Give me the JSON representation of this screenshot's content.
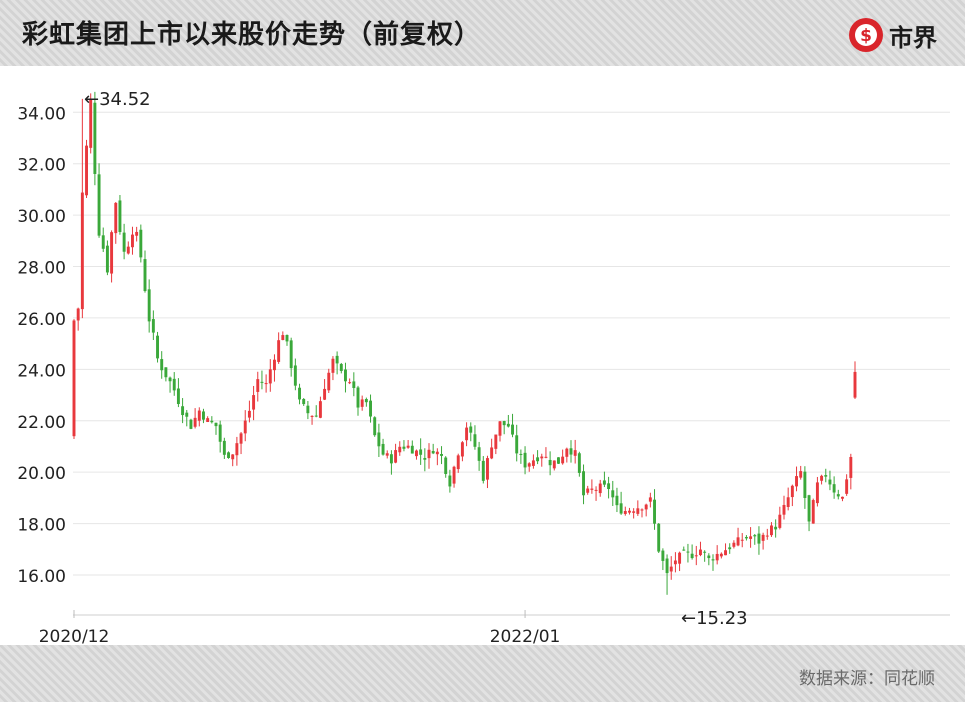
{
  "header": {
    "title": "彩虹集团上市以来股价走势（前复权）",
    "logo_text": "市界",
    "logo_symbol": "$"
  },
  "footer": {
    "source": "数据来源：同花顺"
  },
  "colors": {
    "up": "#e8383d",
    "down": "#3aa83a",
    "grid": "#e6e6e6",
    "axis_text": "#222222",
    "logo_red": "#d9252b"
  },
  "chart_data": {
    "type": "candlestick",
    "title": "彩虹集团上市以来股价走势（前复权）",
    "ylim": [
      14.6,
      35.8
    ],
    "y_ticks": [
      16,
      18,
      20,
      22,
      24,
      26,
      28,
      30,
      32,
      34
    ],
    "y_tick_labels": [
      "16.00",
      "18.00",
      "20.00",
      "22.00",
      "24.00",
      "26.00",
      "28.00",
      "30.00",
      "32.00",
      "34.00"
    ],
    "x_tick_labels": [
      "2020/12",
      "2022/01"
    ],
    "grid": true,
    "annotations": [
      {
        "text": "←34.52",
        "value": 34.52,
        "type": "max"
      },
      {
        "text": "←15.23",
        "value": 15.23,
        "type": "min"
      }
    ],
    "close_path": [
      [
        0,
        22.0
      ],
      [
        2,
        30.8
      ],
      [
        4,
        34.3
      ],
      [
        6,
        29.5
      ],
      [
        8,
        28.0
      ],
      [
        10,
        30.6
      ],
      [
        12,
        28.5
      ],
      [
        14,
        29.6
      ],
      [
        16,
        28.4
      ],
      [
        18,
        26.0
      ],
      [
        20,
        24.4
      ],
      [
        22,
        23.8
      ],
      [
        24,
        23.2
      ],
      [
        26,
        22.4
      ],
      [
        28,
        21.8
      ],
      [
        30,
        22.4
      ],
      [
        32,
        22.0
      ],
      [
        34,
        21.8
      ],
      [
        36,
        20.6
      ],
      [
        38,
        20.8
      ],
      [
        40,
        21.5
      ],
      [
        42,
        22.4
      ],
      [
        44,
        23.6
      ],
      [
        46,
        23.4
      ],
      [
        48,
        24.6
      ],
      [
        50,
        25.5
      ],
      [
        52,
        24.2
      ],
      [
        54,
        22.7
      ],
      [
        56,
        22.3
      ],
      [
        58,
        22.2
      ],
      [
        60,
        23.4
      ],
      [
        62,
        24.3
      ],
      [
        64,
        23.8
      ],
      [
        66,
        23.6
      ],
      [
        68,
        22.6
      ],
      [
        70,
        22.7
      ],
      [
        72,
        21.4
      ],
      [
        74,
        20.7
      ],
      [
        76,
        20.5
      ],
      [
        78,
        21.0
      ],
      [
        80,
        21.0
      ],
      [
        82,
        20.8
      ],
      [
        84,
        20.6
      ],
      [
        86,
        20.9
      ],
      [
        88,
        20.6
      ],
      [
        90,
        19.6
      ],
      [
        92,
        20.8
      ],
      [
        94,
        21.8
      ],
      [
        96,
        21.0
      ],
      [
        98,
        19.8
      ],
      [
        100,
        21.1
      ],
      [
        102,
        21.9
      ],
      [
        104,
        21.8
      ],
      [
        106,
        20.8
      ],
      [
        108,
        20.3
      ],
      [
        110,
        20.5
      ],
      [
        112,
        20.7
      ],
      [
        114,
        20.4
      ],
      [
        116,
        20.4
      ],
      [
        118,
        21.0
      ],
      [
        120,
        20.7
      ],
      [
        122,
        19.1
      ],
      [
        124,
        19.3
      ],
      [
        126,
        19.4
      ],
      [
        128,
        19.4
      ],
      [
        130,
        18.6
      ],
      [
        132,
        18.5
      ],
      [
        134,
        18.6
      ],
      [
        136,
        18.7
      ],
      [
        138,
        18.9
      ],
      [
        140,
        17.0
      ],
      [
        142,
        16.0
      ],
      [
        144,
        16.6
      ],
      [
        146,
        16.8
      ],
      [
        148,
        16.8
      ],
      [
        150,
        17.0
      ],
      [
        152,
        16.6
      ],
      [
        154,
        16.8
      ],
      [
        156,
        17.0
      ],
      [
        158,
        17.2
      ],
      [
        160,
        17.4
      ],
      [
        162,
        17.5
      ],
      [
        164,
        17.3
      ],
      [
        166,
        17.7
      ],
      [
        168,
        17.9
      ],
      [
        170,
        18.6
      ],
      [
        172,
        19.4
      ],
      [
        174,
        20.0
      ],
      [
        176,
        18.0
      ],
      [
        178,
        19.5
      ],
      [
        180,
        19.9
      ],
      [
        182,
        19.3
      ],
      [
        184,
        19.0
      ],
      [
        186,
        20.6
      ],
      [
        187,
        23.3
      ]
    ],
    "candle_count": 188
  }
}
